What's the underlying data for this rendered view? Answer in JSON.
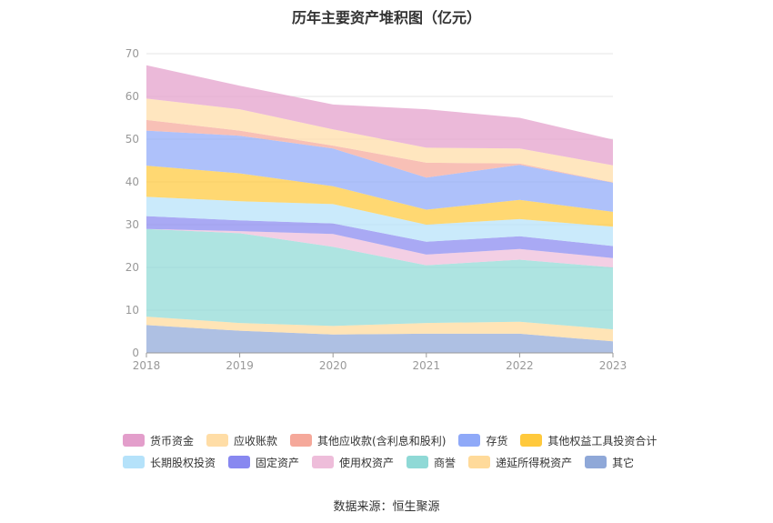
{
  "title": "历年主要资产堆积图（亿元）",
  "source": "数据来源：恒生聚源",
  "chart_data": {
    "type": "area",
    "stacked": true,
    "categories": [
      "2018",
      "2019",
      "2020",
      "2021",
      "2022",
      "2023"
    ],
    "ylim": [
      0,
      70
    ],
    "yticks": [
      0,
      10,
      20,
      30,
      40,
      50,
      60,
      70
    ],
    "grid": true,
    "legend_position": "bottom",
    "series": [
      {
        "name": "其它",
        "color": "#8FA8D8",
        "values": [
          6.5,
          5.2,
          4.3,
          4.5,
          4.5,
          2.7
        ]
      },
      {
        "name": "递延所得税资产",
        "color": "#FFDA9A",
        "values": [
          2.0,
          1.8,
          2.0,
          2.5,
          2.8,
          2.8
        ]
      },
      {
        "name": "商誉",
        "color": "#8FD9D6",
        "values": [
          20.5,
          21.0,
          18.5,
          13.5,
          14.5,
          14.5
        ]
      },
      {
        "name": "使用权资产",
        "color": "#EEBDDA",
        "values": [
          0.0,
          0.5,
          3.0,
          2.5,
          2.5,
          2.2
        ]
      },
      {
        "name": "固定资产",
        "color": "#8888F0",
        "values": [
          3.0,
          2.5,
          2.5,
          3.0,
          3.0,
          2.8
        ]
      },
      {
        "name": "长期股权投资",
        "color": "#B5E2FA",
        "values": [
          4.5,
          4.5,
          4.5,
          4.0,
          4.0,
          4.5
        ]
      },
      {
        "name": "其他权益工具投资合计",
        "color": "#FFC93C",
        "values": [
          7.3,
          6.5,
          4.2,
          3.5,
          4.5,
          3.5
        ]
      },
      {
        "name": "存货",
        "color": "#8FA9F8",
        "values": [
          8.2,
          8.8,
          8.8,
          7.5,
          8.2,
          6.8
        ]
      },
      {
        "name": "其他应收款(含利息和股利)",
        "color": "#F5A89A",
        "values": [
          2.5,
          1.2,
          0.7,
          3.5,
          0.3,
          0.1
        ]
      },
      {
        "name": "应收账款",
        "color": "#FFDDA6",
        "values": [
          5.0,
          5.0,
          3.8,
          3.5,
          3.5,
          4.0
        ]
      },
      {
        "name": "货币资金",
        "color": "#E39ECB",
        "values": [
          7.8,
          5.5,
          5.8,
          9.0,
          7.2,
          6.0
        ]
      }
    ]
  },
  "legend_rows": [
    [
      "货币资金",
      "应收账款",
      "其他应收款(含利息和股利)",
      "存货",
      "其他权益工具投资合计"
    ],
    [
      "长期股权投资",
      "固定资产",
      "使用权资产",
      "商誉",
      "递延所得税资产",
      "其它"
    ]
  ]
}
